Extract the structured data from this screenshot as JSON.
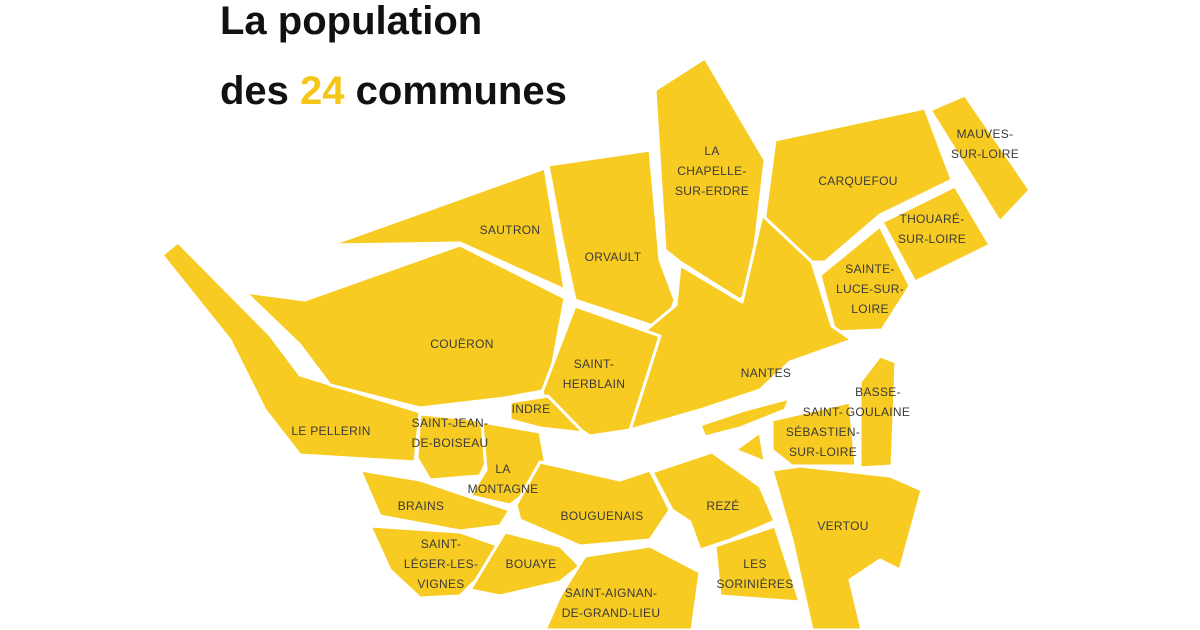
{
  "title": {
    "line1": "La population",
    "line2": [
      "des ",
      "24",
      " communes"
    ]
  },
  "communes": [
    {
      "name_lines": [
        "LA",
        "CHAPELLE-",
        "SUR-ERDRE"
      ]
    },
    {
      "name_lines": [
        "MAUVES-",
        "SUR-LOIRE"
      ]
    },
    {
      "name_lines": [
        "CARQUEFOU"
      ]
    },
    {
      "name_lines": [
        "THOUARÉ-",
        "SUR-LOIRE"
      ]
    },
    {
      "name_lines": [
        "SAUTRON"
      ]
    },
    {
      "name_lines": [
        "ORVAULT"
      ]
    },
    {
      "name_lines": [
        "SAINTE-",
        "LUCE-SUR-",
        "LOIRE"
      ]
    },
    {
      "name_lines": [
        "COUËRON"
      ]
    },
    {
      "name_lines": [
        "SAINT-",
        "HERBLAIN"
      ]
    },
    {
      "name_lines": [
        "NANTES"
      ]
    },
    {
      "name_lines": [
        "BASSE-",
        "GOULAINE"
      ]
    },
    {
      "name_lines": [
        "SAINT-",
        "SÉBASTIEN-",
        "SUR-LOIRE"
      ]
    },
    {
      "name_lines": [
        "INDRE"
      ]
    },
    {
      "name_lines": [
        "LE PELLERIN"
      ]
    },
    {
      "name_lines": [
        "SAINT-JEAN-",
        "DE-BOISEAU"
      ]
    },
    {
      "name_lines": [
        "LA",
        "MONTAGNE"
      ]
    },
    {
      "name_lines": [
        "BRAINS"
      ]
    },
    {
      "name_lines": [
        "BOUGUENAIS"
      ]
    },
    {
      "name_lines": [
        "REZÉ"
      ]
    },
    {
      "name_lines": [
        "VERTOU"
      ]
    },
    {
      "name_lines": [
        "SAINT-",
        "LÉGER-LES-",
        "VIGNES"
      ]
    },
    {
      "name_lines": [
        "BOUAYE"
      ]
    },
    {
      "name_lines": [
        "LES",
        "SORINIÈRES"
      ]
    },
    {
      "name_lines": [
        "SAINT-AIGNAN-",
        "DE-GRAND-LIEU"
      ]
    }
  ]
}
